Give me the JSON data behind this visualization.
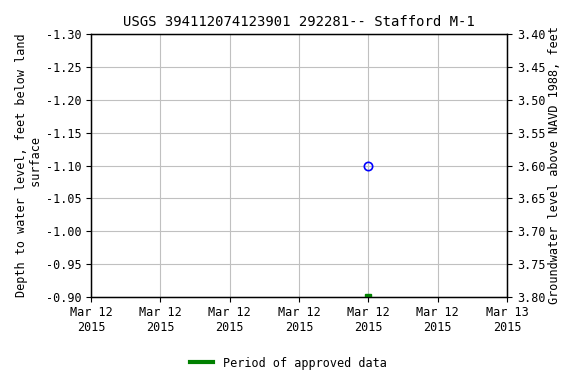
{
  "title": "USGS 394112074123901 292281-- Stafford M-1",
  "ylabel_left": "Depth to water level, feet below land\n surface",
  "ylabel_right": "Groundwater level above NAVD 1988, feet",
  "ylim_left": [
    -1.3,
    -0.9
  ],
  "ylim_right": [
    3.4,
    3.8
  ],
  "yticks_left": [
    -1.3,
    -1.25,
    -1.2,
    -1.15,
    -1.1,
    -1.05,
    -1.0,
    -0.95,
    -0.9
  ],
  "yticks_right": [
    3.4,
    3.45,
    3.5,
    3.55,
    3.6,
    3.65,
    3.7,
    3.75,
    3.8
  ],
  "xlim": [
    0,
    6
  ],
  "xtick_positions": [
    0,
    1,
    2,
    3,
    4,
    5,
    6
  ],
  "xtick_labels": [
    "Mar 12\n2015",
    "Mar 12\n2015",
    "Mar 12\n2015",
    "Mar 12\n2015",
    "Mar 12\n2015",
    "Mar 12\n2015",
    "Mar 13\n2015"
  ],
  "point_blue_x": 4,
  "point_blue_y": -1.1,
  "point_green_x": 4,
  "point_green_y": -0.9,
  "bg_color": "#ffffff",
  "grid_color": "#c0c0c0",
  "title_fontsize": 10,
  "axis_label_fontsize": 8.5,
  "tick_fontsize": 8.5,
  "legend_label": "Period of approved data",
  "legend_color": "#008000"
}
